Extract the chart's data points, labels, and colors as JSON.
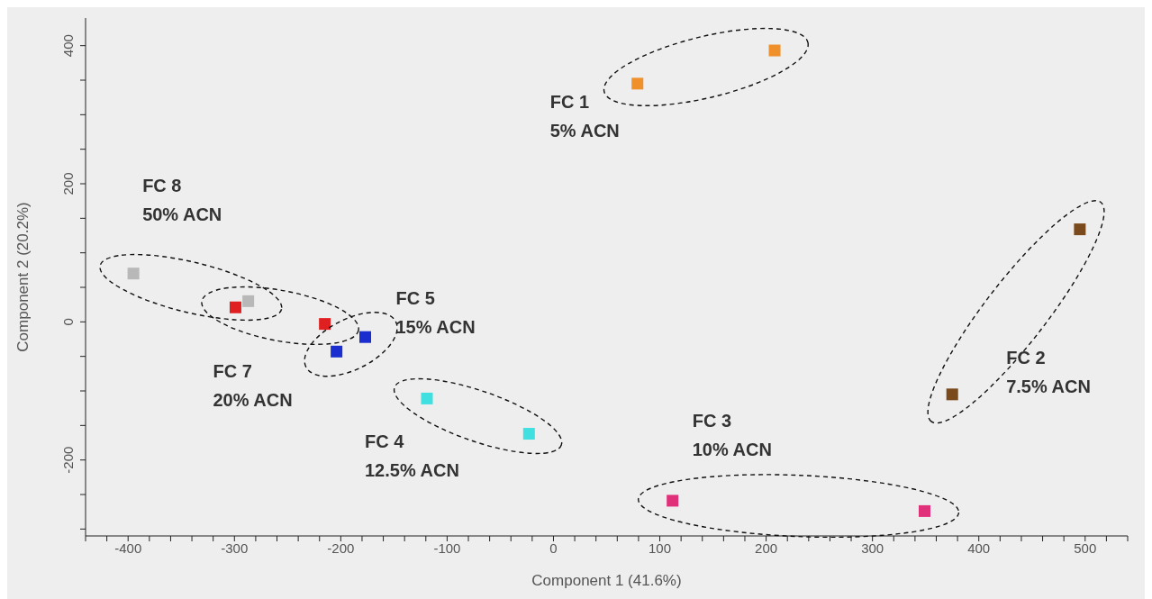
{
  "chart_data": {
    "type": "scatter",
    "xlabel": "Component 1 (41.6%)",
    "ylabel": "Component 2 (20.2%)",
    "xlim": [
      -440,
      540
    ],
    "ylim": [
      -310,
      440
    ],
    "xticks": [
      {
        "value": -440,
        "label": null
      },
      {
        "value": -420,
        "label": null
      },
      -400,
      {
        "value": -380,
        "label": null
      },
      {
        "value": -360,
        "label": null
      },
      {
        "value": -340,
        "label": null
      },
      {
        "value": -320,
        "label": null
      },
      -300,
      {
        "value": -280,
        "label": null
      },
      {
        "value": -260,
        "label": null
      },
      {
        "value": -240,
        "label": null
      },
      {
        "value": -220,
        "label": null
      },
      -200,
      {
        "value": -180,
        "label": null
      },
      {
        "value": -160,
        "label": null
      },
      {
        "value": -140,
        "label": null
      },
      {
        "value": -120,
        "label": null
      },
      -100,
      {
        "value": -80,
        "label": null
      },
      {
        "value": -60,
        "label": null
      },
      {
        "value": -40,
        "label": null
      },
      {
        "value": -20,
        "label": null
      },
      0,
      {
        "value": 20,
        "label": null
      },
      {
        "value": 40,
        "label": null
      },
      {
        "value": 60,
        "label": null
      },
      {
        "value": 80,
        "label": null
      },
      100,
      {
        "value": 120,
        "label": null
      },
      {
        "value": 140,
        "label": null
      },
      {
        "value": 160,
        "label": null
      },
      {
        "value": 180,
        "label": null
      },
      200,
      {
        "value": 220,
        "label": null
      },
      {
        "value": 240,
        "label": null
      },
      {
        "value": 260,
        "label": null
      },
      {
        "value": 280,
        "label": null
      },
      300,
      {
        "value": 320,
        "label": null
      },
      {
        "value": 340,
        "label": null
      },
      {
        "value": 360,
        "label": null
      },
      {
        "value": 380,
        "label": null
      },
      400,
      {
        "value": 420,
        "label": null
      },
      {
        "value": 440,
        "label": null
      },
      {
        "value": 460,
        "label": null
      },
      {
        "value": 480,
        "label": null
      },
      500,
      {
        "value": 520,
        "label": null
      },
      {
        "value": 540,
        "label": null
      }
    ],
    "yticks": [
      {
        "value": -300,
        "label": null
      },
      {
        "value": -250,
        "label": null
      },
      -200,
      {
        "value": -150,
        "label": null
      },
      {
        "value": -100,
        "label": null
      },
      {
        "value": -50,
        "label": null
      },
      0,
      {
        "value": 50,
        "label": null
      },
      {
        "value": 100,
        "label": null
      },
      {
        "value": 150,
        "label": null
      },
      200,
      {
        "value": 250,
        "label": null
      },
      {
        "value": 300,
        "label": null
      },
      {
        "value": 350,
        "label": null
      },
      400
    ],
    "grid": false,
    "legend": false,
    "marker": "square",
    "series": [
      {
        "name": "FC 1 5% ACN",
        "color": "#f0902a",
        "x": [
          79,
          208
        ],
        "values": [
          345,
          393
        ]
      },
      {
        "name": "FC 2 7.5% ACN",
        "color": "#7b4a1c",
        "x": [
          495,
          375
        ],
        "values": [
          134,
          -105
        ]
      },
      {
        "name": "FC 3 10% ACN",
        "color": "#e0307a",
        "x": [
          112,
          349
        ],
        "values": [
          -259,
          -274
        ]
      },
      {
        "name": "FC 4 12.5% ACN",
        "color": "#40e0e0",
        "x": [
          -119,
          -23
        ],
        "values": [
          -111,
          -162
        ]
      },
      {
        "name": "FC 5 15% ACN",
        "color": "#1a2ed0",
        "x": [
          -177,
          -204
        ],
        "values": [
          -22,
          -43
        ]
      },
      {
        "name": "FC 7 20% ACN",
        "color": "#e02020",
        "x": [
          -299,
          -215
        ],
        "values": [
          21,
          -3
        ]
      },
      {
        "name": "FC 8 50% ACN",
        "color": "#b8b8b8",
        "x": [
          -395,
          -287
        ],
        "values": [
          70,
          30
        ]
      }
    ]
  }
}
